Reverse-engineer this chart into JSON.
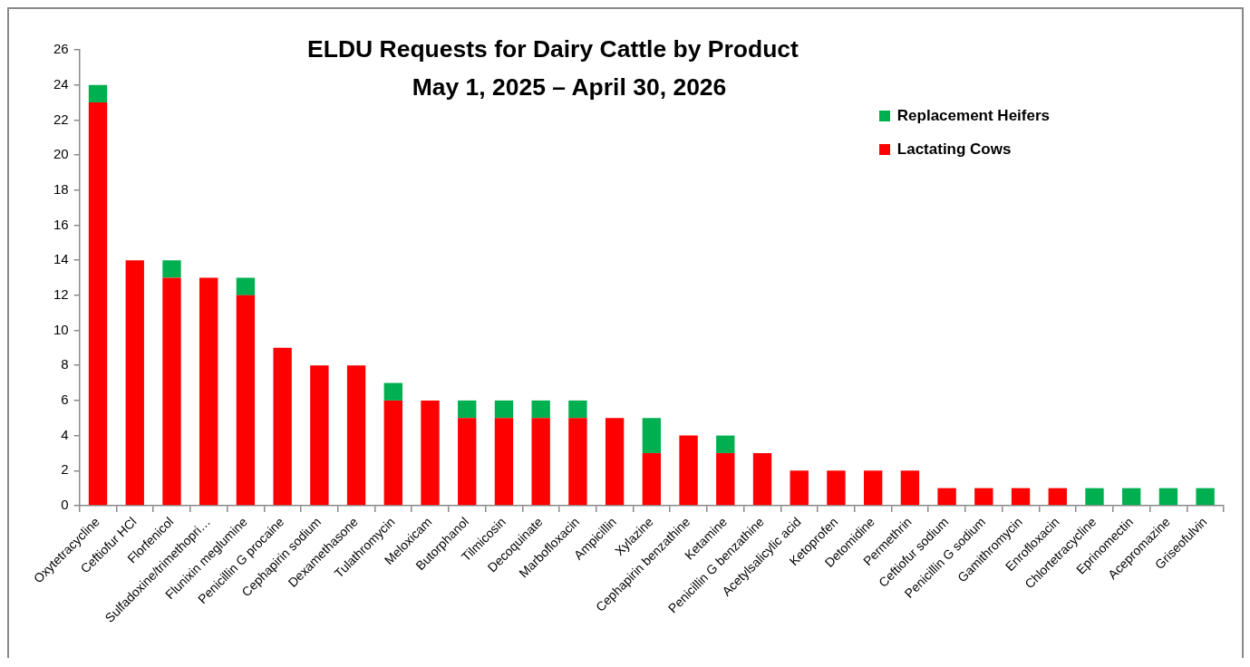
{
  "chart_data": {
    "type": "bar",
    "title": "ELDU Requests for Dairy Cattle by Product",
    "subtitle": "May 1, 2025 – April 30, 2026",
    "categories": [
      "Oxytetracycline",
      "Ceftiofur HCl",
      "Florfenicol",
      "Sulfadoxine/trimethopri…",
      "Flunixin meglumine",
      "Penicillin G procaine",
      "Cephapirin sodium",
      "Dexamethasone",
      "Tulathromycin",
      "Meloxicam",
      "Butorphanol",
      "Tilmicosin",
      "Decoquinate",
      "Marbofloxacin",
      "Ampicillin",
      "Xylazine",
      "Cephapirin benzathine",
      "Ketamine",
      "Penicillin G benzathine",
      "Acetylsalicylic acid",
      "Ketoprofen",
      "Detomidine",
      "Permethrin",
      "Ceftiofur sodium",
      "Penicillin G sodium",
      "Gamithromycin",
      "Enrofloxacin",
      "Chlortetracycline",
      "Eprinomectin",
      "Acepromazine",
      "Griseofulvin"
    ],
    "series": [
      {
        "name": "Lactating Cows",
        "color": "#ff0000",
        "values": [
          23,
          14,
          13,
          13,
          12,
          9,
          8,
          8,
          6,
          6,
          5,
          5,
          5,
          5,
          5,
          3,
          4,
          3,
          3,
          2,
          2,
          2,
          2,
          1,
          1,
          1,
          1,
          0,
          0,
          0,
          0
        ]
      },
      {
        "name": "Replacement Heifers",
        "color": "#00b050",
        "values": [
          1,
          0,
          1,
          0,
          1,
          0,
          0,
          0,
          1,
          0,
          1,
          1,
          1,
          1,
          0,
          2,
          0,
          1,
          0,
          0,
          0,
          0,
          0,
          0,
          0,
          0,
          0,
          1,
          1,
          1,
          1
        ]
      }
    ],
    "stacked": true,
    "ylim": [
      0,
      26
    ],
    "yticks": [
      0,
      2,
      4,
      6,
      8,
      10,
      12,
      14,
      16,
      18,
      20,
      22,
      24,
      26
    ],
    "legend": "top right"
  }
}
